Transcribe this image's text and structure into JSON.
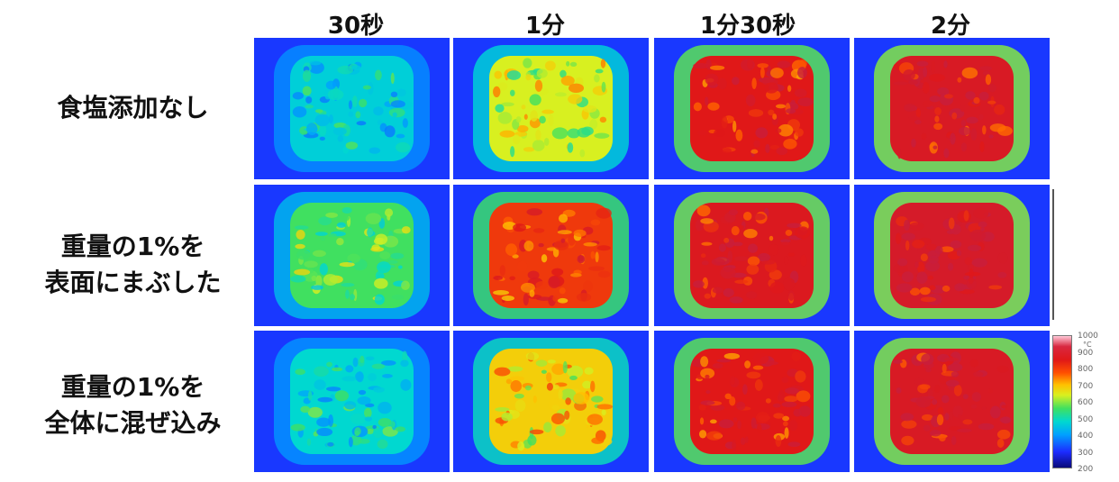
{
  "columns": [
    "30秒",
    "1分",
    "1分30秒",
    "2分"
  ],
  "rows": [
    {
      "lines": [
        "食塩添加なし"
      ],
      "levels": [
        0.3,
        0.55,
        0.85,
        0.9
      ]
    },
    {
      "lines": [
        "重量の1%を",
        "表面にまぶした"
      ],
      "levels": [
        0.45,
        0.8,
        0.88,
        0.92
      ]
    },
    {
      "lines": [
        "重量の1%を",
        "全体に混ぜ込み"
      ],
      "levels": [
        0.32,
        0.62,
        0.85,
        0.9
      ]
    }
  ],
  "scale": {
    "unit": "°C",
    "ticks": [
      "1000",
      "900",
      "800",
      "700",
      "600",
      "500",
      "400",
      "300",
      "200"
    ]
  },
  "colors": {
    "background": "#1c2cff",
    "hot": "#e01818",
    "warm": "#ffc000",
    "cool": "#00c8ff"
  }
}
